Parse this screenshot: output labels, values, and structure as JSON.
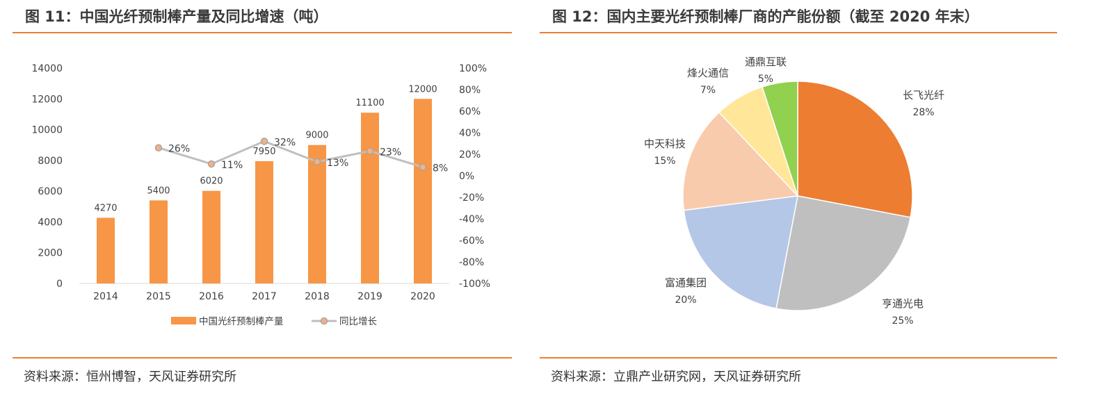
{
  "left_panel": {
    "title": "图 11：中国光纤预制棒产量及同比增速（吨）",
    "source": "资料来源：恒州博智，天风证券研究所"
  },
  "right_panel": {
    "title": "图 12：国内主要光纤预制棒厂商的产能份额（截至 2020 年末）",
    "source": "资料来源：立鼎产业研究网，天风证券研究所"
  },
  "chart_data": [
    {
      "type": "bar",
      "title": "",
      "categories": [
        "2014",
        "2015",
        "2016",
        "2017",
        "2018",
        "2019",
        "2020"
      ],
      "series": [
        {
          "name": "中国光纤预制棒产量",
          "type": "bar",
          "axis": "left",
          "values": [
            4270,
            5400,
            6020,
            7950,
            9000,
            11100,
            12000
          ],
          "color": "#f79646"
        },
        {
          "name": "同比增长",
          "type": "line",
          "axis": "right",
          "values": [
            null,
            26,
            11,
            32,
            13,
            23,
            8
          ],
          "color": "#bfbfbf",
          "marker_color": "#f4b183"
        }
      ],
      "bar_labels": [
        "4270",
        "5400",
        "6020",
        "7950",
        "9000",
        "11100",
        "12000"
      ],
      "line_labels": [
        "",
        "26%",
        "11%",
        "32%",
        "13%",
        "23%",
        "8%"
      ],
      "ylim_left": [
        0,
        14000
      ],
      "yticks_left": [
        "0",
        "2000",
        "4000",
        "6000",
        "8000",
        "10000",
        "12000",
        "14000"
      ],
      "ylim_right": [
        -100,
        100
      ],
      "yticks_right": [
        "-100%",
        "-80%",
        "-60%",
        "-40%",
        "-20%",
        "0%",
        "20%",
        "40%",
        "60%",
        "80%",
        "100%"
      ],
      "grid": false,
      "legend": "bottom"
    },
    {
      "type": "pie",
      "title": "",
      "labels": [
        "长飞光纤",
        "亨通光电",
        "富通集团",
        "中天科技",
        "烽火通信",
        "通鼎互联"
      ],
      "values": [
        28,
        25,
        20,
        15,
        7,
        5
      ],
      "value_labels": [
        "28%",
        "25%",
        "20%",
        "15%",
        "7%",
        "5%"
      ],
      "colors": [
        "#ed7d31",
        "#bfbfbf",
        "#b4c7e7",
        "#f8cbad",
        "#ffe699",
        "#92d050"
      ],
      "legend": "none"
    }
  ]
}
